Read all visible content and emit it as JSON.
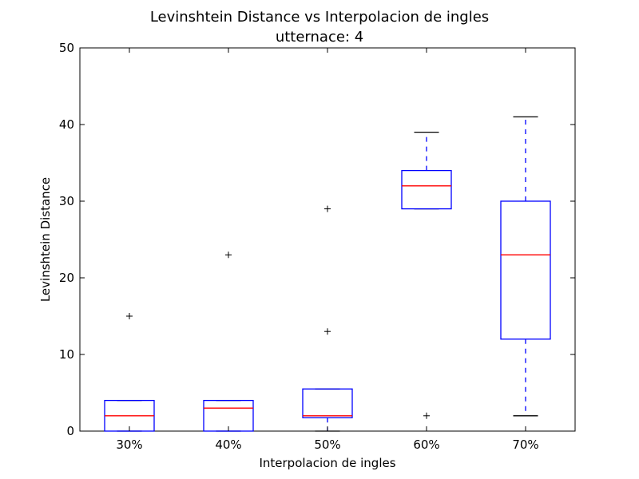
{
  "chart_data": {
    "type": "box",
    "title": "Levinshtein Distance vs Interpolacion de ingles",
    "subtitle": "utternace: 4",
    "xlabel": "Interpolacion de ingles",
    "ylabel": "Levinshtein Distance",
    "ylim": [
      0,
      50
    ],
    "yticks": [
      "0",
      "10",
      "20",
      "30",
      "40",
      "50"
    ],
    "categories": [
      "30%",
      "40%",
      "50%",
      "60%",
      "70%"
    ],
    "boxes": [
      {
        "whisker_low": 0,
        "q1": 0,
        "median": 2,
        "q3": 4,
        "whisker_high": 4,
        "outliers": [
          15
        ]
      },
      {
        "whisker_low": 0,
        "q1": 0,
        "median": 3,
        "q3": 4,
        "whisker_high": 4,
        "outliers": [
          23
        ]
      },
      {
        "whisker_low": 0,
        "q1": 1.75,
        "median": 2,
        "q3": 5.5,
        "whisker_high": 5.5,
        "outliers": [
          13,
          29
        ]
      },
      {
        "whisker_low": 29,
        "q1": 29,
        "median": 32,
        "q3": 34,
        "whisker_high": 39,
        "outliers": [
          2
        ]
      },
      {
        "whisker_low": 2,
        "q1": 12,
        "median": 23,
        "q3": 30,
        "whisker_high": 41,
        "outliers": []
      }
    ],
    "colors": {
      "box": "#0000ff",
      "median": "#ff0000",
      "cap": "#000000",
      "outlier": "#000000"
    },
    "grid": false
  }
}
